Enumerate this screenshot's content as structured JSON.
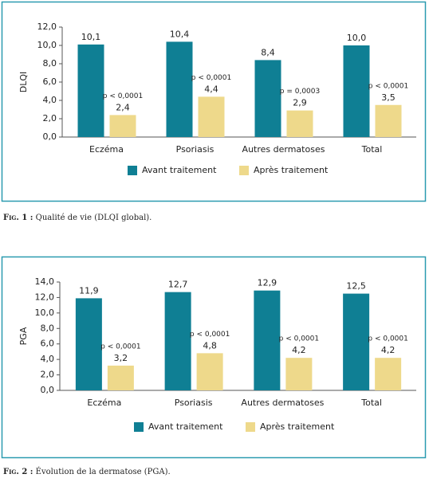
{
  "chart_data": [
    {
      "type": "bar",
      "y_label": "DLQI",
      "categories": [
        "Eczéma",
        "Psoriasis",
        "Autres dermatoses",
        "Total"
      ],
      "series": [
        {
          "name": "Avant traitement",
          "color": "#0f7f94",
          "values": [
            10.1,
            10.4,
            8.4,
            10.0
          ],
          "value_labels": [
            "10,1",
            "10,4",
            "8,4",
            "10,0"
          ]
        },
        {
          "name": "Après traitement",
          "color": "#eed98b",
          "values": [
            2.4,
            4.4,
            2.9,
            3.5
          ],
          "value_labels": [
            "2,4",
            "4,4",
            "2,9",
            "3,5"
          ]
        }
      ],
      "annotations": [
        "p < 0,0001",
        "p < 0,0001",
        "p = 0,0003",
        "p < 0,0001"
      ],
      "ylim": [
        0,
        12
      ],
      "yticks": [
        {
          "value": 0,
          "label": "0,0"
        },
        {
          "value": 2,
          "label": "2,0"
        },
        {
          "value": 4,
          "label": "4,0"
        },
        {
          "value": 6,
          "label": "6,0"
        },
        {
          "value": 8,
          "label": "8,0"
        },
        {
          "value": 10,
          "label": "10,0"
        },
        {
          "value": 12,
          "label": "12,0"
        }
      ]
    },
    {
      "type": "bar",
      "y_label": "PGA",
      "categories": [
        "Eczéma",
        "Psoriasis",
        "Autres dermatoses",
        "Total"
      ],
      "series": [
        {
          "name": "Avant traitement",
          "color": "#0f7f94",
          "values": [
            11.9,
            12.7,
            12.9,
            12.5
          ],
          "value_labels": [
            "11,9",
            "12,7",
            "12,9",
            "12,5"
          ]
        },
        {
          "name": "Après traitement",
          "color": "#eed98b",
          "values": [
            3.2,
            4.8,
            4.2,
            4.2
          ],
          "value_labels": [
            "3,2",
            "4,8",
            "4,2",
            "4,2"
          ]
        }
      ],
      "annotations": [
        "p < 0,0001",
        "p < 0,0001",
        "p < 0,0001",
        "p < 0,0001"
      ],
      "ylim": [
        0,
        14
      ],
      "yticks": [
        {
          "value": 0,
          "label": "0,0"
        },
        {
          "value": 2,
          "label": "2,0"
        },
        {
          "value": 4,
          "label": "4,0"
        },
        {
          "value": 6,
          "label": "6,0"
        },
        {
          "value": 8,
          "label": "8,0"
        },
        {
          "value": 10,
          "label": "10,0"
        },
        {
          "value": 12,
          "label": "12,0"
        },
        {
          "value": 14,
          "label": "14,0"
        }
      ]
    }
  ],
  "captions": [
    {
      "label": "Fig. 1 :",
      "text": "Qualité de vie (DLQI global)."
    },
    {
      "label": "Fig. 2 :",
      "text": "Évolution de la dermatose (PGA)."
    }
  ]
}
